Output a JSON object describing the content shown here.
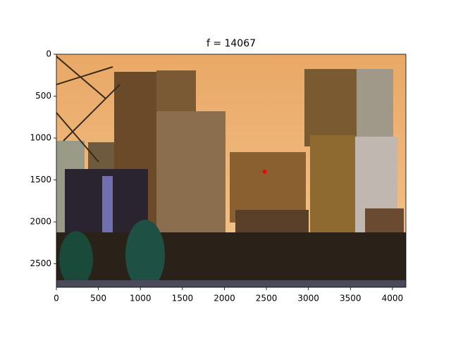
{
  "chart_data": {
    "type": "scatter",
    "title": "f = 14067",
    "x": [
      2480
    ],
    "y": [
      1400
    ],
    "color": "#ff0000",
    "xlim": [
      0,
      4160
    ],
    "ylim": [
      2780,
      0
    ],
    "xticks": [
      0,
      500,
      1000,
      1500,
      2000,
      2500,
      3000,
      3500,
      4000
    ],
    "yticks": [
      0,
      500,
      1000,
      1500,
      2000,
      2500
    ]
  }
}
